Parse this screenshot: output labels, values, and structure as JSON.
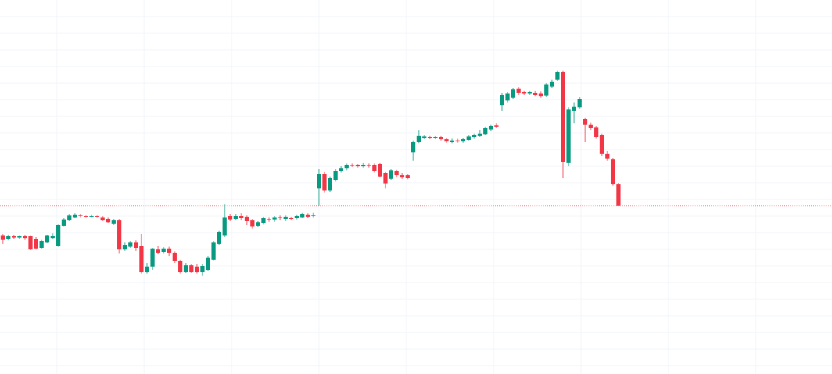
{
  "chart_data": {
    "type": "candlestick",
    "xlim": [
      -0.5,
      149.5
    ],
    "xticks": [
      9.75,
      25.5,
      41.25,
      57,
      72.75,
      88.5,
      104.25,
      120,
      135.75
    ],
    "ylim": [
      0,
      540
    ],
    "yticks": [
      12,
      36,
      60,
      84,
      108,
      132,
      156,
      180,
      204,
      228,
      252,
      276,
      300,
      324,
      348,
      372,
      396,
      420,
      444,
      468,
      492,
      516
    ],
    "grid": true,
    "up_color": "#089981",
    "down_color": "#f23645",
    "grid_color": "#f0f3fa",
    "last_price": 243,
    "last_price_color": "#f23645",
    "series": [
      {
        "open": [
          200,
          195,
          199,
          197,
          199,
          199,
          195,
          182,
          190,
          196,
          185,
          214,
          222,
          226,
          229,
          228,
          227,
          228,
          226,
          224,
          217,
          222,
          180,
          184,
          190,
          185,
          147,
          155,
          180,
          176,
          181,
          175,
          163,
          147,
          157,
          155,
          147,
          150,
          165,
          188,
          200,
          228,
          224,
          228,
          227,
          222,
          214,
          218,
          224,
          223,
          226,
          224,
          225,
          225,
          226,
          230,
          228,
          268,
          289,
          265,
          280,
          293,
          297,
          302,
          302,
          300,
          302,
          302,
          303,
          290,
          282,
          293,
          287,
          287,
          320,
          335,
          341,
          342,
          341,
          342,
          339,
          335,
          337,
          336,
          338,
          342,
          344,
          346,
          353,
          359,
          388,
          395,
          399,
          412,
          407,
          405,
          406,
          405,
          402,
          415,
          425,
          436,
          305,
          380,
          385,
          368,
          360,
          356,
          345,
          318,
          310,
          274
        ],
        "high": [
          202,
          201,
          201,
          200,
          201,
          200,
          198,
          194,
          201,
          203,
          216,
          225,
          231,
          232,
          231,
          229,
          230,
          229,
          228,
          226,
          224,
          224,
          190,
          192,
          193,
          202,
          160,
          182,
          185,
          183,
          184,
          177,
          165,
          160,
          159,
          159,
          159,
          170,
          192,
          207,
          245,
          231,
          231,
          232,
          229,
          224,
          221,
          227,
          226,
          228,
          229,
          229,
          227,
          230,
          233,
          232,
          233,
          296,
          292,
          285,
          296,
          300,
          304,
          304,
          303,
          305,
          304,
          304,
          305,
          292,
          296,
          295,
          290,
          289,
          337,
          352,
          345,
          344,
          344,
          344,
          341,
          340,
          340,
          341,
          345,
          347,
          352,
          357,
          360,
          362,
          406,
          407,
          413,
          414,
          409,
          409,
          409,
          408,
          420,
          425,
          438,
          438,
          385,
          392,
          400,
          370,
          363,
          358,
          347,
          322,
          312,
          276
        ],
        "low": [
          188,
          193,
          195,
          195,
          194,
          179,
          180,
          181,
          189,
          195,
          184,
          213,
          221,
          225,
          226,
          226,
          226,
          226,
          221,
          218,
          215,
          174,
          178,
          182,
          178,
          145,
          145,
          150,
          173,
          174,
          170,
          160,
          145,
          146,
          146,
          145,
          142,
          149,
          164,
          186,
          198,
          221,
          222,
          222,
          215,
          210,
          212,
          216,
          220,
          220,
          222,
          221,
          222,
          223,
          225,
          225,
          226,
          243,
          262,
          263,
          278,
          291,
          294,
          299,
          298,
          298,
          298,
          291,
          284,
          268,
          280,
          284,
          282,
          281,
          308,
          333,
          339,
          339,
          339,
          337,
          334,
          333,
          334,
          334,
          337,
          340,
          342,
          345,
          351,
          355,
          380,
          392,
          397,
          403,
          403,
          403,
          401,
          399,
          400,
          413,
          423,
          283,
          300,
          362,
          383,
          335,
          352,
          340,
          315,
          308,
          272,
          243
        ],
        "close": [
          194,
          199,
          197,
          199,
          196,
          180,
          181,
          192,
          200,
          199,
          215,
          223,
          229,
          230,
          228,
          227,
          228,
          227,
          222,
          219,
          222,
          180,
          186,
          190,
          182,
          147,
          155,
          181,
          175,
          181,
          175,
          163,
          147,
          157,
          147,
          147,
          156,
          168,
          190,
          205,
          226,
          223,
          228,
          225,
          221,
          213,
          219,
          225,
          223,
          226,
          225,
          227,
          224,
          228,
          231,
          227,
          229,
          289,
          265,
          283,
          293,
          297,
          302,
          301,
          300,
          302,
          301,
          293,
          285,
          275,
          294,
          287,
          284,
          283,
          335,
          344,
          343,
          341,
          342,
          339,
          336,
          337,
          336,
          339,
          343,
          345,
          347,
          355,
          358,
          357,
          403,
          405,
          411,
          406,
          405,
          407,
          403,
          401,
          418,
          422,
          436,
          306,
          382,
          386,
          397,
          360,
          355,
          342,
          318,
          311,
          274,
          243
        ]
      }
    ]
  }
}
